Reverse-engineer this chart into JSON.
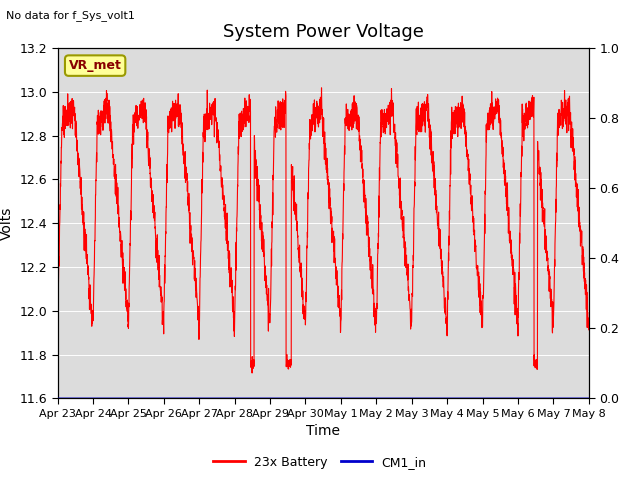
{
  "title": "System Power Voltage",
  "no_data_label": "No data for f_Sys_volt1",
  "ylabel_left": "Volts",
  "xlabel": "Time",
  "ylim_left": [
    11.6,
    13.2
  ],
  "ylim_right": [
    0.0,
    1.0
  ],
  "yticks_left": [
    11.6,
    11.8,
    12.0,
    12.2,
    12.4,
    12.6,
    12.8,
    13.0,
    13.2
  ],
  "yticks_right": [
    0.0,
    0.2,
    0.4,
    0.6,
    0.8,
    1.0
  ],
  "xtick_labels": [
    "Apr 23",
    "Apr 24",
    "Apr 25",
    "Apr 26",
    "Apr 27",
    "Apr 28",
    "Apr 29",
    "Apr 30",
    "May 1",
    "May 2",
    "May 3",
    "May 4",
    "May 5",
    "May 6",
    "May 7",
    "May 8"
  ],
  "line_color_battery": "#FF0000",
  "line_color_cm1": "#0000CC",
  "bg_color": "#DCDCDC",
  "annotation_box_facecolor": "#FFFF99",
  "annotation_box_edgecolor": "#999900",
  "annotation_text": "VR_met",
  "annotation_text_color": "#880000",
  "legend_labels": [
    "23x Battery",
    "CM1_in"
  ],
  "title_fontsize": 13,
  "axis_label_fontsize": 10,
  "tick_fontsize": 9,
  "annotation_fontsize": 9
}
